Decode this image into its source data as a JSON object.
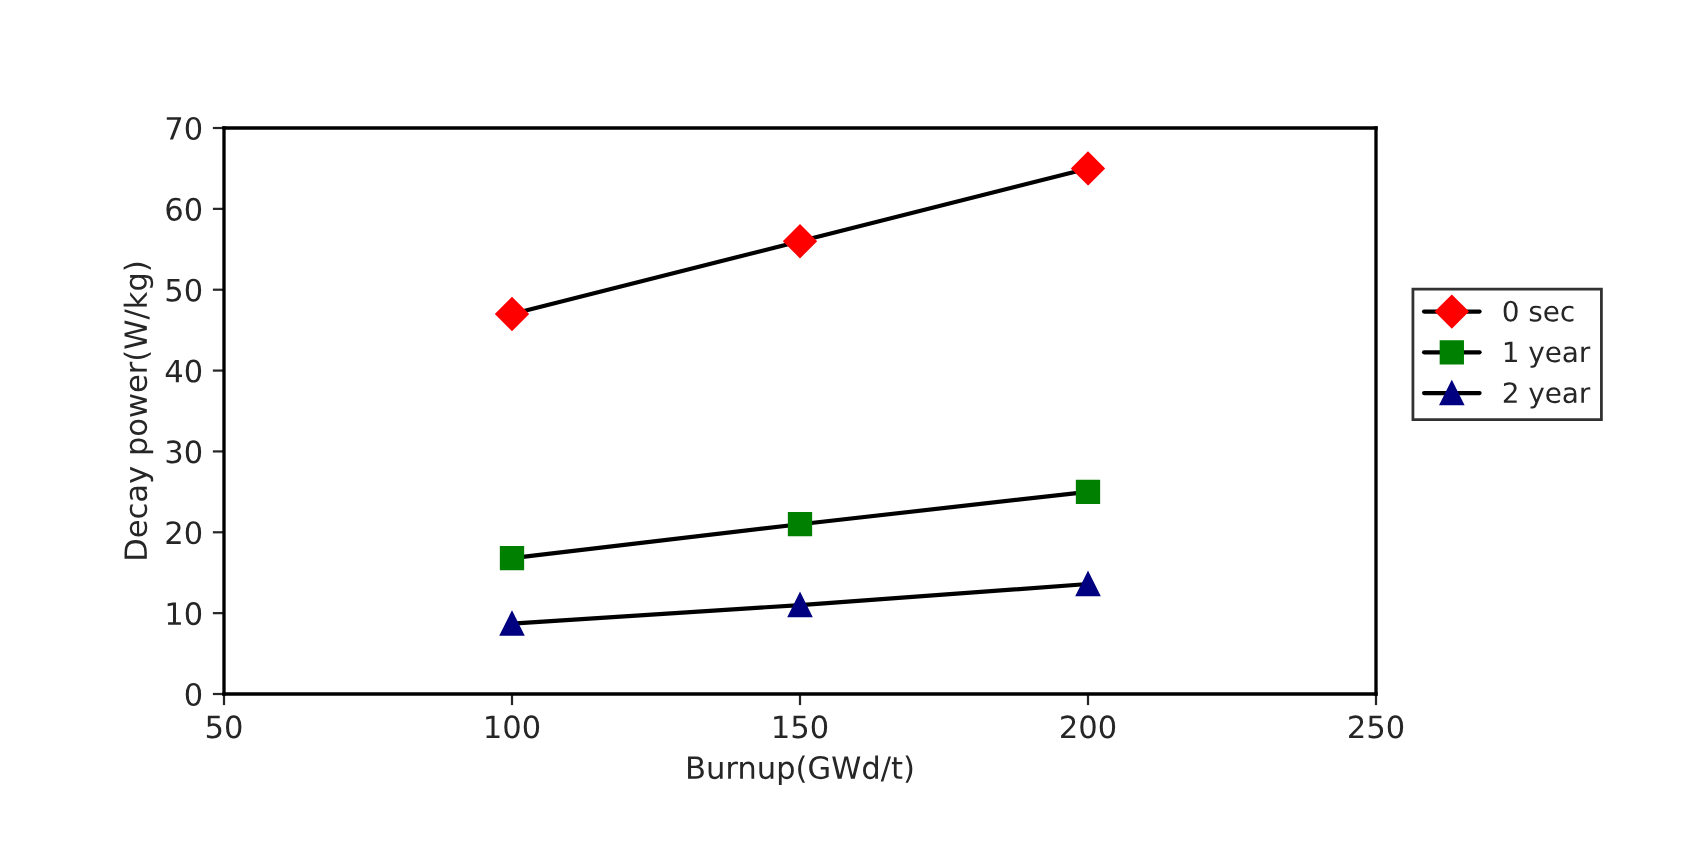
{
  "chart_data": {
    "type": "line",
    "xlabel": "Burnup(GWd/t)",
    "ylabel": "Decay power(W/kg)",
    "x": [
      100,
      150,
      200
    ],
    "series": [
      {
        "name": "0 sec",
        "color": "#ff0000",
        "marker": "diamond",
        "values": [
          47,
          56,
          65
        ]
      },
      {
        "name": "1 year",
        "color": "#008000",
        "marker": "square",
        "values": [
          16.8,
          21,
          25
        ]
      },
      {
        "name": "2 year",
        "color": "#000080",
        "marker": "triangle",
        "values": [
          8.7,
          11,
          13.6
        ]
      }
    ],
    "xlim": [
      50,
      250
    ],
    "xticks": [
      50,
      100,
      150,
      200,
      250
    ],
    "ylim": [
      0,
      70
    ],
    "yticks": [
      0,
      10,
      20,
      30,
      40,
      50,
      60,
      70
    ],
    "grid": false,
    "legend": "right",
    "line_style": "solid"
  }
}
